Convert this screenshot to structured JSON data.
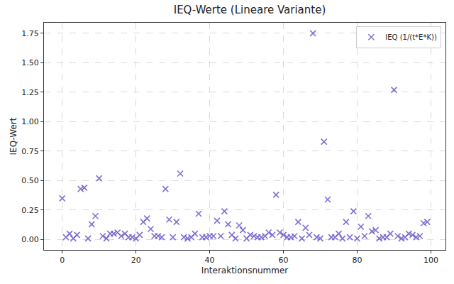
{
  "chart_data": {
    "type": "scatter",
    "title": "IEQ-Werte (Lineare Variante)",
    "x_label": "Interaktionsnummer",
    "y_label": "IEQ-Wert",
    "x": [
      0,
      1,
      2,
      3,
      4,
      5,
      6,
      7,
      8,
      9,
      10,
      11,
      12,
      13,
      14,
      15,
      16,
      17,
      18,
      19,
      20,
      21,
      22,
      23,
      24,
      25,
      26,
      27,
      28,
      29,
      30,
      31,
      32,
      33,
      34,
      35,
      36,
      37,
      38,
      39,
      40,
      41,
      42,
      43,
      44,
      45,
      46,
      47,
      48,
      49,
      50,
      51,
      52,
      53,
      54,
      55,
      56,
      57,
      58,
      59,
      60,
      61,
      62,
      63,
      64,
      65,
      66,
      67,
      68,
      69,
      70,
      71,
      72,
      73,
      74,
      75,
      76,
      77,
      78,
      79,
      80,
      81,
      82,
      83,
      84,
      85,
      86,
      87,
      88,
      89,
      90,
      91,
      92,
      93,
      94,
      95,
      96,
      97,
      98,
      99
    ],
    "series": [
      {
        "name": "IEQ (1/(t*E*K))",
        "color": "#6a5acd",
        "marker": "x",
        "values": [
          0.35,
          0.02,
          0.05,
          0.01,
          0.04,
          0.43,
          0.44,
          0.01,
          0.13,
          0.2,
          0.52,
          0.03,
          0.01,
          0.05,
          0.05,
          0.06,
          0.03,
          0.05,
          0.02,
          0.02,
          0.01,
          0.04,
          0.15,
          0.18,
          0.09,
          0.03,
          0.03,
          0.02,
          0.43,
          0.17,
          0.02,
          0.15,
          0.56,
          0.02,
          0.01,
          0.02,
          0.05,
          0.22,
          0.02,
          0.02,
          0.03,
          0.03,
          0.16,
          0.03,
          0.24,
          0.13,
          0.04,
          0.01,
          0.12,
          0.08,
          0.01,
          0.04,
          0.03,
          0.02,
          0.02,
          0.03,
          0.06,
          0.04,
          0.38,
          0.06,
          0.04,
          0.02,
          0.02,
          0.03,
          0.15,
          0.01,
          0.1,
          0.04,
          1.75,
          0.02,
          0.01,
          0.83,
          0.34,
          0.02,
          0.02,
          0.05,
          0.01,
          0.15,
          0.02,
          0.24,
          0.01,
          0.11,
          0.03,
          0.2,
          0.07,
          0.08,
          0.01,
          0.02,
          0.02,
          0.05,
          1.27,
          0.03,
          0.01,
          0.02,
          0.05,
          0.04,
          0.02,
          0.03,
          0.14,
          0.15
        ]
      }
    ],
    "xlim": [
      -4.95,
      103.95
    ],
    "xticks": [
      0,
      20,
      40,
      60,
      80,
      100
    ],
    "ylim": [
      -0.0875,
      1.84
    ],
    "yticks": [
      {
        "value": 0,
        "label": "0.00"
      },
      {
        "value": 0.25,
        "label": "0.25"
      },
      {
        "value": 0.5,
        "label": "0.50"
      },
      {
        "value": 0.75,
        "label": "0.75"
      },
      {
        "value": 1,
        "label": "1.00"
      },
      {
        "value": 1.25,
        "label": "1.25"
      },
      {
        "value": 1.5,
        "label": "1.50"
      },
      {
        "value": 1.75,
        "label": "1.75"
      }
    ],
    "grid": true,
    "legend": "upper right"
  }
}
